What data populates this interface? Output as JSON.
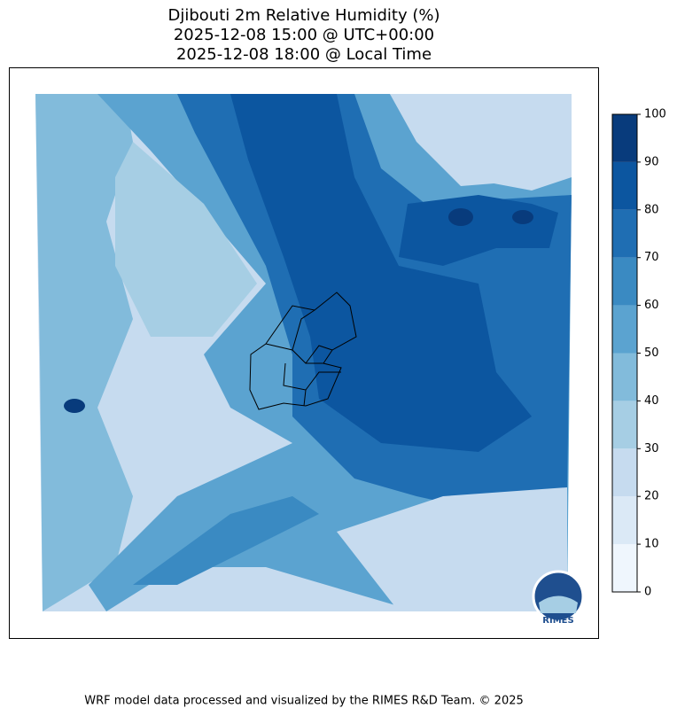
{
  "title": [
    "Djibouti 2m Relative Humidity (%)",
    "2025-12-08 15:00 @ UTC+00:00",
    "2025-12-08 18:00 @ Local Time"
  ],
  "colorbar": {
    "ticks": [
      0,
      10,
      20,
      30,
      40,
      50,
      60,
      70,
      80,
      90,
      100
    ],
    "colors": [
      "#eff6fd",
      "#dbe9f6",
      "#c6dbef",
      "#a6cee4",
      "#82bbdb",
      "#5ba3d0",
      "#3a8ac2",
      "#1f6eb3",
      "#0c56a0",
      "#083b7c"
    ]
  },
  "logo": "RIMES",
  "footer": "WRF model data processed and visualized by the RIMES R&D Team. © 2025"
}
